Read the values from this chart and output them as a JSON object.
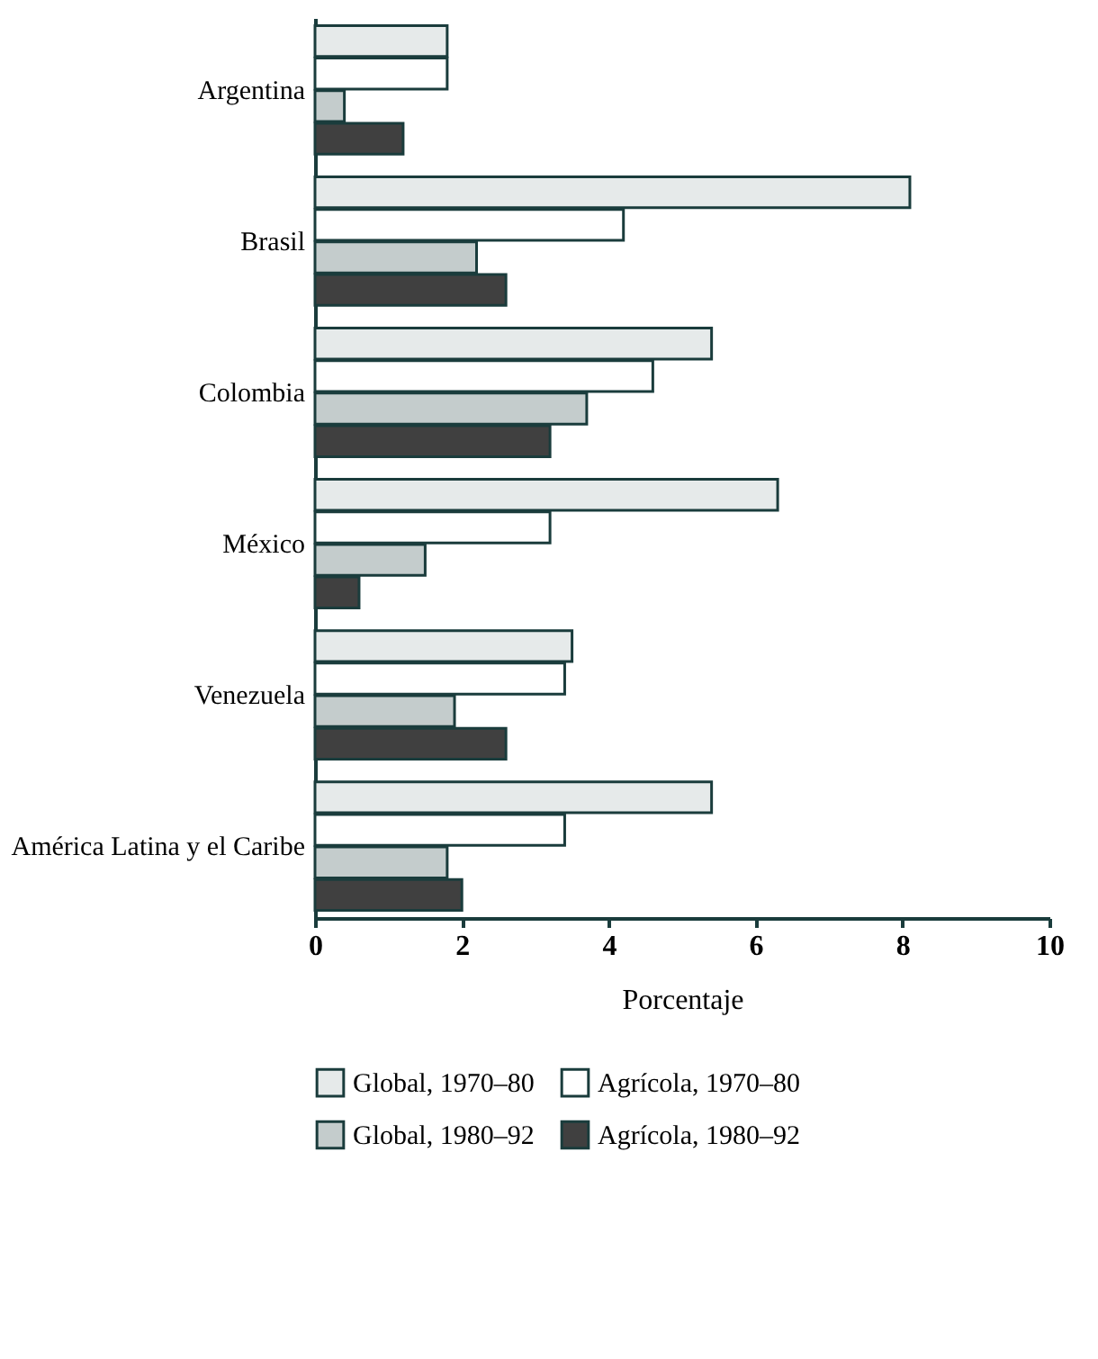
{
  "chart_data": {
    "type": "bar",
    "orientation": "horizontal",
    "xlabel": "Porcentaje",
    "categories": [
      "Argentina",
      "Brasil",
      "Colombia",
      "México",
      "Venezuela",
      "América Latina y el Caribe"
    ],
    "series": [
      {
        "name": "Global, 1970–80",
        "color": "#e6eaea",
        "values": [
          1.8,
          8.1,
          5.4,
          6.3,
          3.5,
          5.4
        ]
      },
      {
        "name": "Agrícola, 1970–80",
        "color": "#ffffff",
        "values": [
          1.8,
          4.2,
          4.6,
          3.2,
          3.4,
          3.4
        ]
      },
      {
        "name": "Global, 1980–92",
        "color": "#c4cccc",
        "values": [
          0.4,
          2.2,
          3.7,
          1.5,
          1.9,
          1.8
        ]
      },
      {
        "name": "Agrícola, 1980–92",
        "color": "#404040",
        "values": [
          1.2,
          2.6,
          3.2,
          0.6,
          2.6,
          2.0
        ]
      }
    ],
    "xlim": [
      0,
      10
    ],
    "xticks": [
      0,
      2,
      4,
      6,
      8,
      10
    ],
    "grid": false,
    "legend": "bottom"
  }
}
